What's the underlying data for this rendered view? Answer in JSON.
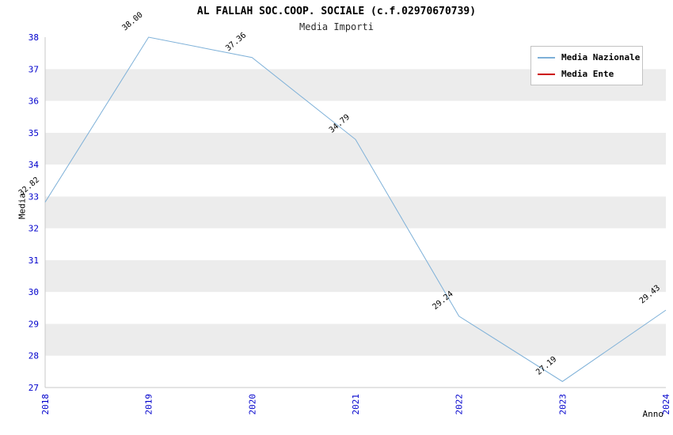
{
  "title": "AL FALLAH SOC.COOP. SOCIALE (c.f.02970670739)",
  "subtitle": "Media Importi",
  "legend": {
    "items": [
      {
        "label": "Media Nazionale",
        "color": "#7db0d8"
      },
      {
        "label": "Media Ente",
        "color": "#cc0000"
      }
    ]
  },
  "chart_data": {
    "type": "line",
    "title": "AL FALLAH SOC.COOP. SOCIALE (c.f.02970670739)",
    "subtitle": "Media Importi",
    "xlabel": "Anno",
    "ylabel": "Media",
    "x": [
      2018,
      2019,
      2020,
      2021,
      2022,
      2023,
      2024
    ],
    "series": [
      {
        "name": "Media Nazionale",
        "color": "#7db0d8",
        "values": [
          32.82,
          38.0,
          37.36,
          34.79,
          29.24,
          27.19,
          29.43
        ],
        "labels": [
          "32.82",
          "38.00",
          "37.36",
          "34.79",
          "29.24",
          "27.19",
          "29.43"
        ]
      },
      {
        "name": "Media Ente",
        "color": "#cc0000",
        "values": [],
        "labels": []
      }
    ],
    "ylim": [
      27,
      38
    ],
    "yticks": [
      27,
      28,
      29,
      30,
      31,
      32,
      33,
      34,
      35,
      36,
      37,
      38
    ],
    "grid": "alternating-horizontal-bands",
    "band_colors": [
      "#ffffff",
      "#ececec"
    ],
    "tick_color": "#0000cc",
    "label_color": "#000000",
    "legend_position": "top-right"
  }
}
